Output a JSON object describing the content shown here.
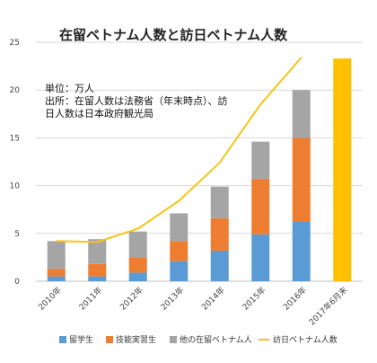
{
  "chart_data": {
    "type": "bar",
    "title": "在留ベトナム人数と訪日ベトナム人数",
    "note_lines": [
      "単位：万人",
      "出所：在留人数は法務省（年末時点）、訪",
      "日人数は日本政府観光局"
    ],
    "categories": [
      "2010年",
      "2011年",
      "2012年",
      "2013年",
      "2014年",
      "2015年",
      "2016年",
      "2017年6月末"
    ],
    "ylim": [
      0,
      25
    ],
    "yticks": [
      0,
      5,
      10,
      15,
      20,
      25
    ],
    "series": [
      {
        "name": "留学生",
        "kind": "stacked_bar",
        "color": "#5b9bd5",
        "values": [
          0.5,
          0.5,
          0.9,
          2.1,
          3.2,
          4.9,
          6.2,
          null
        ]
      },
      {
        "name": "技能実習生",
        "kind": "stacked_bar",
        "color": "#ed7d31",
        "values": [
          0.8,
          1.3,
          1.6,
          2.1,
          3.4,
          5.8,
          8.8,
          null
        ]
      },
      {
        "name": "他の在留ベトナム人",
        "kind": "stacked_bar",
        "color": "#a5a5a5",
        "values": [
          2.9,
          2.6,
          2.7,
          2.9,
          3.3,
          3.9,
          5.0,
          null
        ]
      },
      {
        "name": "訪日ベトナム人数",
        "kind": "line",
        "color": "#f5c518",
        "values": [
          4.2,
          4.1,
          5.5,
          8.4,
          12.4,
          18.5,
          23.4,
          null
        ]
      }
    ],
    "extra_bar": {
      "category": "2017年6月末",
      "value": 23.3,
      "color": "#ffc000"
    },
    "legend_position": "bottom"
  }
}
